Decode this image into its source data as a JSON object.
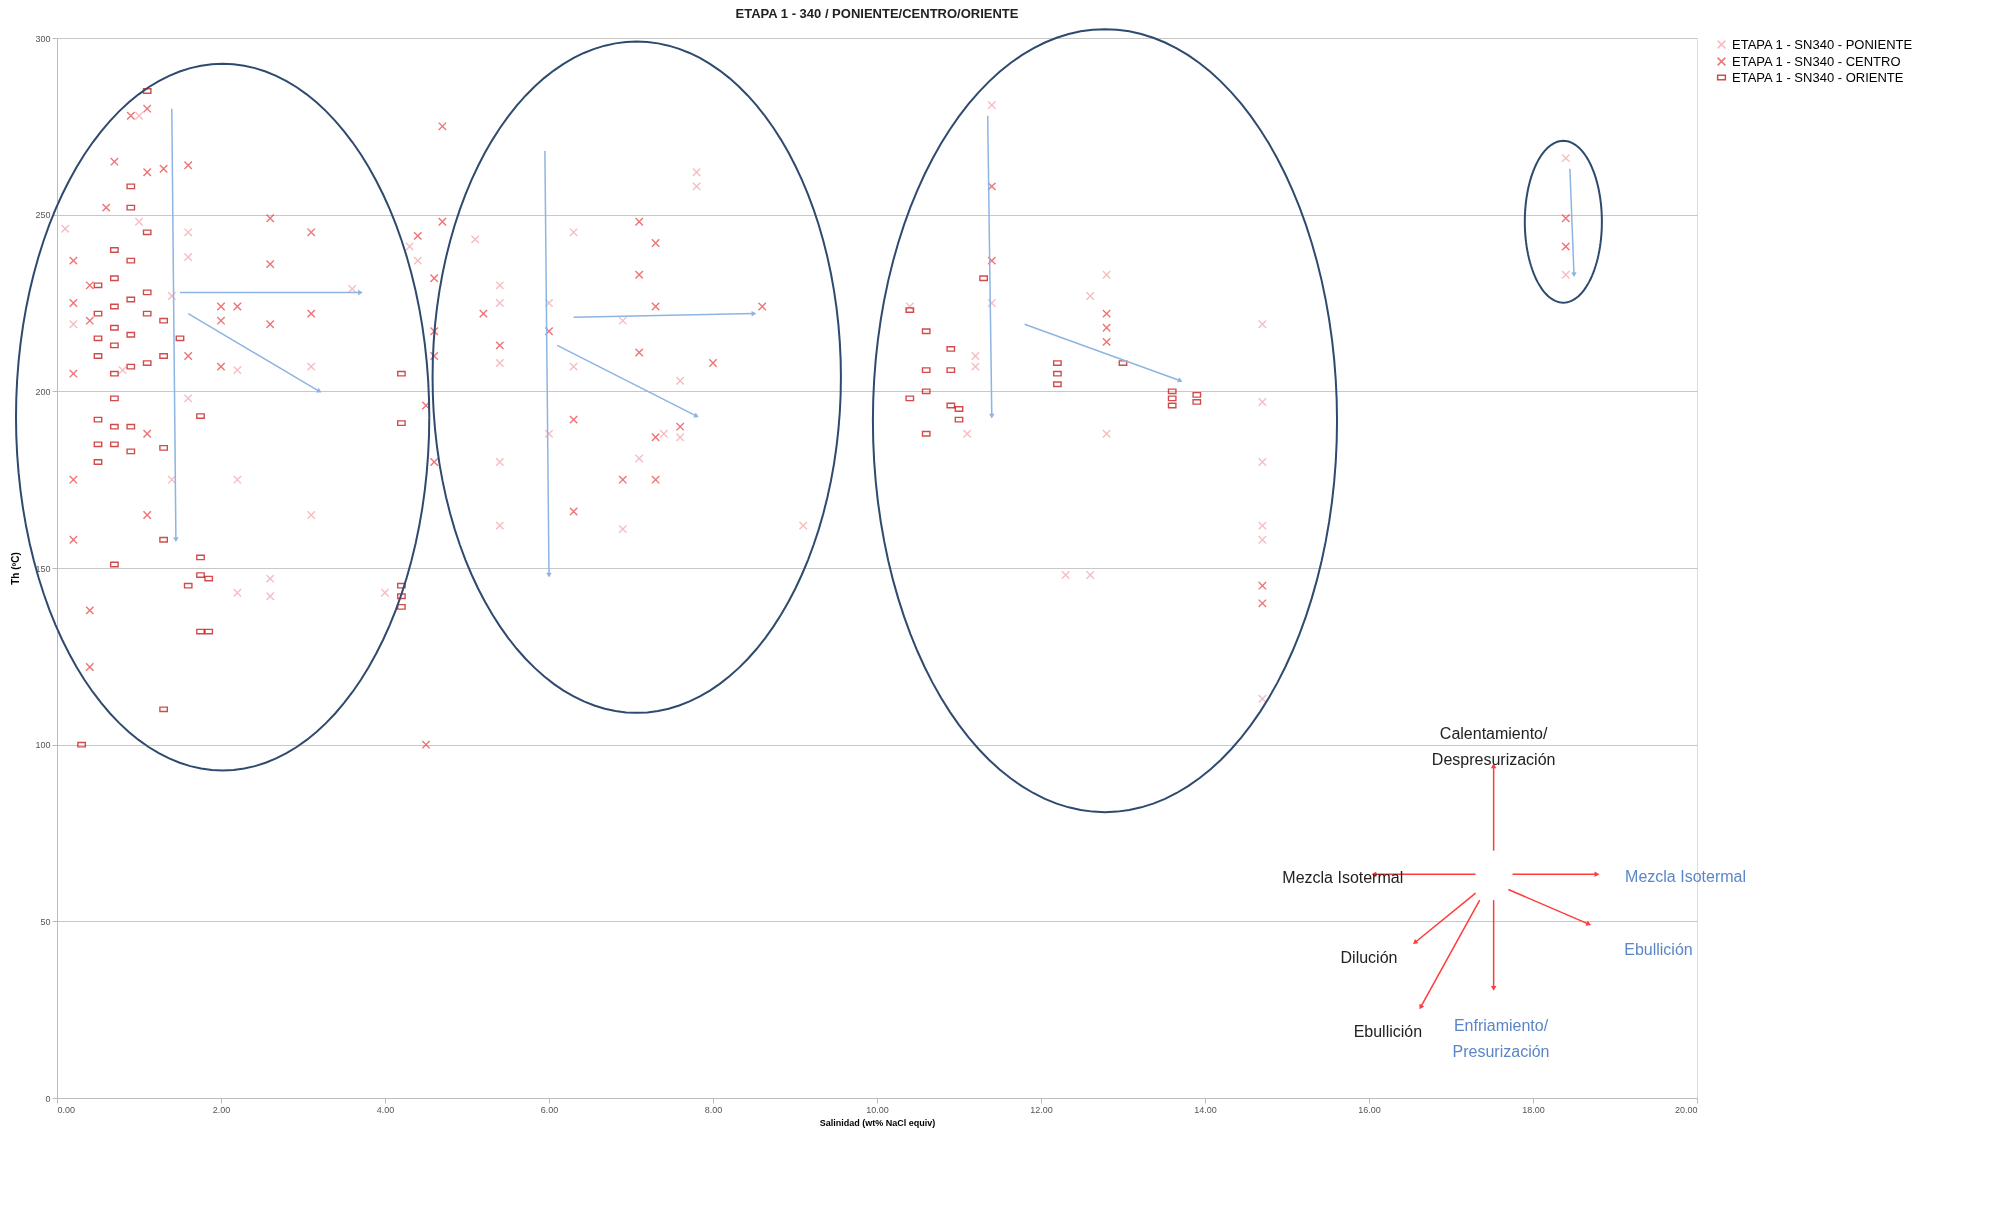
{
  "chart_data": {
    "type": "scatter",
    "title": "ETAPA 1 - 340 / PONIENTE/CENTRO/ORIENTE",
    "xlabel": "Salinidad  (wt% NaCl equiv)",
    "ylabel": "Th (ºC)",
    "xlim": [
      0,
      20
    ],
    "ylim": [
      0,
      300
    ],
    "xticks": [
      {
        "value": 0,
        "label": "0.00"
      },
      {
        "value": 2,
        "label": "2.00"
      },
      {
        "value": 4,
        "label": "4.00"
      },
      {
        "value": 6,
        "label": "6.00"
      },
      {
        "value": 8,
        "label": "8.00"
      },
      {
        "value": 10,
        "label": "10.00"
      },
      {
        "value": 12,
        "label": "12.00"
      },
      {
        "value": 14,
        "label": "14.00"
      },
      {
        "value": 16,
        "label": "16.00"
      },
      {
        "value": 18,
        "label": "18.00"
      },
      {
        "value": 20,
        "label": "20.00"
      }
    ],
    "yticks": [
      0,
      50,
      100,
      150,
      200,
      250,
      300
    ],
    "grid": "y",
    "legend": "right",
    "marker": "cross",
    "series": [
      {
        "name": "ETAPA 1 - SN340 - PONIENTE",
        "color": "#f4a0a8",
        "x": [
          0.1,
          0.2,
          0.8,
          1.0,
          1.0,
          1.4,
          1.6,
          1.6,
          1.4,
          1.6,
          2.2,
          2.2,
          2.6,
          2.6,
          2.2,
          3.1,
          3.1,
          3.6,
          4.0,
          4.3,
          4.4,
          5.1,
          5.4,
          5.4,
          5.4,
          5.4,
          5.4,
          6.0,
          6.0,
          6.3,
          6.3,
          6.9,
          6.9,
          7.1,
          7.4,
          7.6,
          7.6,
          7.8,
          7.8,
          9.1,
          10.4,
          11.2,
          11.2,
          11.1,
          11.4,
          11.4,
          12.3,
          12.6,
          12.6,
          12.8,
          12.8,
          14.7,
          14.7,
          14.7,
          14.7,
          14.7,
          14.7,
          18.4,
          18.4
        ],
        "values": [
          246,
          219,
          206,
          248,
          278,
          227,
          238,
          245,
          175,
          198,
          206,
          175,
          147,
          142,
          143,
          165,
          207,
          229,
          143,
          241,
          237,
          243,
          230,
          225,
          208,
          180,
          162,
          225,
          188,
          245,
          207,
          220,
          161,
          181,
          188,
          203,
          187,
          262,
          258,
          162,
          224,
          210,
          207,
          188,
          281,
          225,
          148,
          148,
          227,
          233,
          188,
          219,
          197,
          180,
          162,
          158,
          113,
          266,
          233
        ]
      },
      {
        "name": "ETAPA 1 - SN340 - CENTRO",
        "color": "#e8383d",
        "marker": "cross",
        "x": [
          0.2,
          0.2,
          0.2,
          0.2,
          0.2,
          0.4,
          0.4,
          0.4,
          0.4,
          0.6,
          0.7,
          0.9,
          1.1,
          1.1,
          1.6,
          1.1,
          1.1,
          1.3,
          1.6,
          2.0,
          2.0,
          2.2,
          2.0,
          2.6,
          2.6,
          2.6,
          3.1,
          3.1,
          4.4,
          4.6,
          4.6,
          4.6,
          4.5,
          4.6,
          4.5,
          4.7,
          4.7,
          5.2,
          5.4,
          6.0,
          6.3,
          6.3,
          7.1,
          7.3,
          7.1,
          7.3,
          7.1,
          7.6,
          7.3,
          7.3,
          6.9,
          8.0,
          8.6,
          11.4,
          11.4,
          12.8,
          12.8,
          12.8,
          14.7,
          14.7,
          18.4,
          18.4
        ],
        "values": [
          237,
          225,
          205,
          175,
          158,
          230,
          220,
          138,
          122,
          252,
          265,
          278,
          280,
          262,
          264,
          188,
          165,
          263,
          210,
          224,
          220,
          224,
          207,
          249,
          236,
          219,
          245,
          222,
          244,
          232,
          217,
          210,
          196,
          180,
          100,
          275,
          248,
          222,
          213,
          217,
          192,
          166,
          248,
          242,
          233,
          224,
          211,
          190,
          187,
          175,
          175,
          208,
          224,
          258,
          237,
          218,
          214,
          222,
          140,
          145,
          249,
          241
        ]
      },
      {
        "name": "ETAPA 1 - SN340 - ORIENTE",
        "color": "#c00000",
        "marker": "square",
        "x": [
          0.5,
          0.5,
          0.5,
          0.5,
          0.5,
          0.5,
          0.5,
          0.7,
          0.7,
          0.7,
          0.7,
          0.7,
          0.7,
          0.7,
          0.7,
          0.7,
          0.7,
          0.9,
          0.9,
          0.9,
          0.9,
          0.9,
          0.9,
          0.9,
          0.9,
          1.1,
          1.1,
          1.1,
          1.1,
          1.1,
          1.3,
          1.3,
          1.3,
          1.3,
          1.3,
          1.75,
          1.75,
          1.75,
          1.75,
          1.85,
          1.85,
          1.6,
          1.5,
          4.2,
          4.2,
          4.2,
          4.2,
          4.2,
          0.3,
          10.4,
          10.6,
          10.9,
          10.6,
          10.9,
          10.4,
          10.6,
          10.9,
          11.0,
          11.0,
          10.6,
          11.3,
          12.2,
          12.2,
          12.2,
          13.6,
          13.6,
          13.6,
          13.9,
          13.9,
          13.0
        ],
        "values": [
          230,
          222,
          215,
          210,
          192,
          185,
          180,
          240,
          232,
          224,
          218,
          213,
          205,
          198,
          190,
          185,
          151,
          258,
          252,
          237,
          226,
          216,
          207,
          190,
          183,
          285,
          245,
          228,
          222,
          208,
          220,
          210,
          158,
          110,
          184,
          193,
          153,
          148,
          132,
          132,
          147,
          145,
          215,
          205,
          191,
          145,
          142,
          139,
          100,
          223,
          217,
          212,
          206,
          206,
          198,
          200,
          196,
          195,
          192,
          188,
          232,
          208,
          205,
          202,
          200,
          198,
          196,
          199,
          197,
          208
        ]
      }
    ],
    "annotations": [
      "Calentamiento/\nDespresurización",
      "Mezcla Isotermal",
      "Mezcla Isotermal",
      "Dilución",
      "Ebullición",
      "Ebullición",
      "Enfriamiento/\nPresurización"
    ]
  }
}
